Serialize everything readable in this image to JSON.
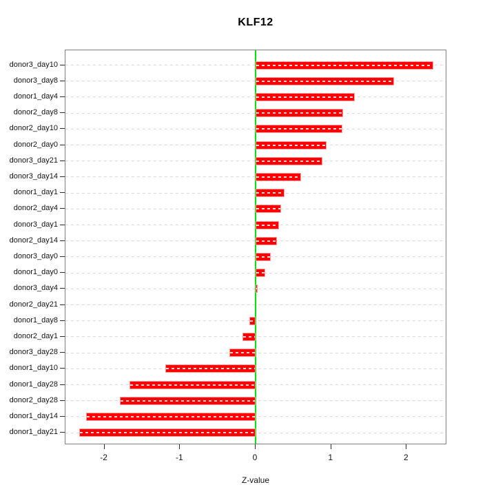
{
  "figure": {
    "title": "KLF12",
    "xlabel": "Z-value"
  },
  "chart_data": {
    "type": "bar",
    "orientation": "horizontal",
    "title": "KLF12",
    "xlabel": "Z-value",
    "ylabel": "",
    "xlim": [
      -2.52,
      2.53
    ],
    "xticks": [
      -2,
      -1,
      0,
      1,
      2
    ],
    "grid": "horizontal dashed line at each category row",
    "legend_position": "none",
    "zero_line": {
      "x": 0,
      "color": "#00e407"
    },
    "bar_color": "#ff0000",
    "bar_border_color": "#ff9d9d",
    "categories": [
      "donor3_day10",
      "donor3_day8",
      "donor1_day4",
      "donor2_day8",
      "donor2_day10",
      "donor2_day0",
      "donor3_day21",
      "donor3_day14",
      "donor1_day1",
      "donor2_day4",
      "donor3_day1",
      "donor2_day14",
      "donor3_day0",
      "donor1_day0",
      "donor3_day4",
      "donor2_day21",
      "donor1_day8",
      "donor2_day1",
      "donor3_day28",
      "donor1_day10",
      "donor1_day28",
      "donor2_day28",
      "donor1_day14",
      "donor1_day21"
    ],
    "values": [
      2.35,
      1.83,
      1.31,
      1.16,
      1.15,
      0.94,
      0.88,
      0.6,
      0.38,
      0.34,
      0.31,
      0.28,
      0.2,
      0.13,
      0.03,
      0.0,
      -0.08,
      -0.17,
      -0.35,
      -1.19,
      -1.67,
      -1.8,
      -2.24,
      -2.33
    ]
  }
}
